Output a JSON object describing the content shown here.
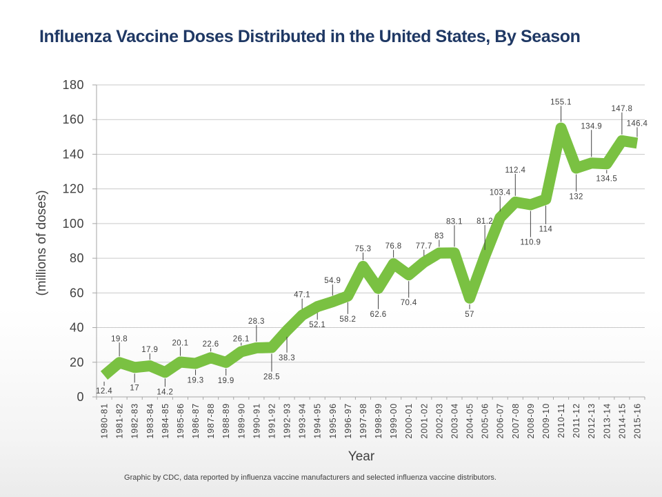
{
  "title": "Influenza Vaccine Doses Distributed in the United States, By Season",
  "footer": {
    "credit": "Graphic by CDC, data reported by influenza vaccine manufacturers and selected influenza vaccine distributors."
  },
  "colors": {
    "title_text": "#1F3864",
    "series_green": "#7AC142",
    "axis_text": "#3F3F3F",
    "label_text": "#404040",
    "gridline": "#C9C9C9",
    "axis_line": "#A6A6A6"
  },
  "chart_data": {
    "type": "line",
    "title": "Influenza Vaccine Doses Distributed in the United States, By Season",
    "xlabel": "Year",
    "ylabel": "(millions of doses)",
    "ylim": [
      0,
      180
    ],
    "yticks": [
      0,
      20,
      40,
      60,
      80,
      100,
      120,
      140,
      160,
      180
    ],
    "grid": true,
    "legend": false,
    "data_labels": true,
    "line_color": "#7AC142",
    "line_width": 16,
    "categories": [
      "1980-81",
      "1981-82",
      "1982-83",
      "1983-84",
      "1984-85",
      "1985-86",
      "1986-87",
      "1987-88",
      "1988-89",
      "1989-90",
      "1990-91",
      "1991-92",
      "1992-93",
      "1993-94",
      "1994-95",
      "1995-96",
      "1996-97",
      "1997-98",
      "1998-99",
      "1999-00",
      "2000-01",
      "2001-02",
      "2002-03",
      "2003-04",
      "2004-05",
      "2005-06",
      "2006-07",
      "2007-08",
      "2008-09",
      "2009-10",
      "2010-11",
      "2011-12",
      "2012-13",
      "2013-14",
      "2014-15",
      "2015-16"
    ],
    "values": [
      12.4,
      19.8,
      17,
      17.9,
      14.2,
      20.1,
      19.3,
      22.6,
      19.9,
      26.1,
      28.3,
      28.5,
      38.3,
      47.1,
      52.1,
      54.9,
      58.2,
      75.3,
      62.6,
      76.8,
      70.4,
      77.7,
      83,
      83.1,
      57,
      81.2,
      103.4,
      112.4,
      110.9,
      114,
      155.1,
      132,
      134.9,
      134.5,
      147.8,
      146.4
    ],
    "label_offsets": [
      22,
      -35,
      29,
      -24,
      28,
      -28,
      24,
      -20,
      26,
      -19,
      -39,
      42,
      39,
      -30,
      26,
      -31,
      33,
      -26,
      37,
      -26,
      40,
      -24,
      -25,
      -46,
      23,
      -51,
      -37,
      -47,
      54,
      43,
      -38,
      41,
      -54,
      21,
      -47,
      -29
    ]
  }
}
